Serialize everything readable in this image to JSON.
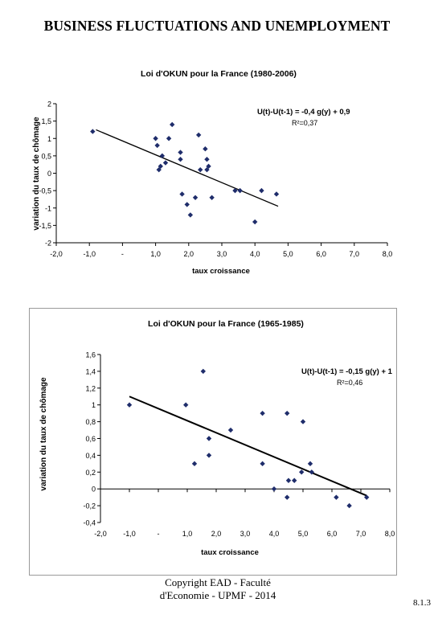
{
  "page": {
    "title": "BUSINESS FLUCTUATIONS AND UNEMPLOYMENT",
    "footer_line1": "Copyright EAD - Faculté",
    "footer_line2": "d'Economie - UPMF - 2014",
    "page_number": "8.1.3"
  },
  "chart_data": [
    {
      "type": "scatter",
      "title": "Loi d'OKUN pour la France (1980-2006)",
      "xlabel": "taux croissance",
      "ylabel": "variation du taux de chômage",
      "xlim": [
        -2,
        8
      ],
      "ylim": [
        -2,
        2
      ],
      "x_ticks": [
        -2,
        -1,
        0,
        1,
        2,
        3,
        4,
        5,
        6,
        7,
        8
      ],
      "x_tick_labels": [
        "-2,0",
        "-1,0",
        "-",
        "1,0",
        "2,0",
        "3,0",
        "4,0",
        "5,0",
        "6,0",
        "7,0",
        "8,0"
      ],
      "y_ticks": [
        2,
        1.5,
        1,
        0.5,
        0,
        -0.5,
        -1,
        -1.5,
        -2
      ],
      "y_tick_labels": [
        "2",
        "1,5",
        "1",
        "0,5",
        "0",
        "-0,5",
        "-1",
        "-1,5",
        "-2"
      ],
      "equation": "U(t)-U(t-1) = -0,4 g(y) + 0,9",
      "r2": "R²=0,37",
      "grid": false,
      "border": false,
      "marker_color": "#1f2d6b",
      "trendline": {
        "x": [
          -0.8,
          4.7
        ],
        "y": [
          1.25,
          -0.95
        ]
      },
      "points": [
        {
          "x": -0.9,
          "y": 1.2
        },
        {
          "x": 1.0,
          "y": 1.0
        },
        {
          "x": 1.05,
          "y": 0.8
        },
        {
          "x": 1.1,
          "y": 0.1
        },
        {
          "x": 1.15,
          "y": 0.2
        },
        {
          "x": 1.2,
          "y": 0.5
        },
        {
          "x": 1.3,
          "y": 0.3
        },
        {
          "x": 1.4,
          "y": 1.0
        },
        {
          "x": 1.5,
          "y": 1.4
        },
        {
          "x": 1.75,
          "y": 0.4
        },
        {
          "x": 1.75,
          "y": 0.6
        },
        {
          "x": 1.8,
          "y": -0.6
        },
        {
          "x": 1.95,
          "y": -0.9
        },
        {
          "x": 2.05,
          "y": -1.2
        },
        {
          "x": 2.2,
          "y": -0.7
        },
        {
          "x": 2.3,
          "y": 1.1
        },
        {
          "x": 2.35,
          "y": 0.1
        },
        {
          "x": 2.5,
          "y": 0.7
        },
        {
          "x": 2.55,
          "y": 0.4
        },
        {
          "x": 2.55,
          "y": 0.1
        },
        {
          "x": 2.6,
          "y": 0.2
        },
        {
          "x": 2.7,
          "y": -0.7
        },
        {
          "x": 3.4,
          "y": -0.5
        },
        {
          "x": 3.55,
          "y": -0.5
        },
        {
          "x": 4.0,
          "y": -1.4
        },
        {
          "x": 4.2,
          "y": -0.5
        },
        {
          "x": 4.65,
          "y": -0.6
        }
      ]
    },
    {
      "type": "scatter",
      "title": "Loi d'OKUN pour la France (1965-1985)",
      "xlabel": "taux croissance",
      "ylabel": "variation du taux de chômage",
      "xlim": [
        -2,
        8
      ],
      "ylim": [
        -0.4,
        1.6
      ],
      "x_ticks": [
        -2,
        -1,
        0,
        1,
        2,
        3,
        4,
        5,
        6,
        7,
        8
      ],
      "x_tick_labels": [
        "-2,0",
        "-1,0",
        "-",
        "1,0",
        "2,0",
        "3,0",
        "4,0",
        "5,0",
        "6,0",
        "7,0",
        "8,0"
      ],
      "y_ticks": [
        1.6,
        1.4,
        1.2,
        1.0,
        0.8,
        0.6,
        0.4,
        0.2,
        0,
        -0.2,
        -0.4
      ],
      "y_tick_labels": [
        "1,6",
        "1,4",
        "1,2",
        "1",
        "0,8",
        "0,6",
        "0,4",
        "0,2",
        "0",
        "-0,2",
        "-0,4"
      ],
      "equation": "U(t)-U(t-1) = -0,15 g(y) + 1",
      "r2": "R²=0,46",
      "grid": false,
      "border": true,
      "marker_color": "#1f2d6b",
      "trendline": {
        "x": [
          -1.0,
          7.2
        ],
        "y": [
          1.1,
          -0.08
        ]
      },
      "points": [
        {
          "x": -1.0,
          "y": 1.0
        },
        {
          "x": 0.95,
          "y": 1.0
        },
        {
          "x": 1.25,
          "y": 0.3
        },
        {
          "x": 1.55,
          "y": 1.4
        },
        {
          "x": 1.75,
          "y": 0.6
        },
        {
          "x": 1.75,
          "y": 0.4
        },
        {
          "x": 2.5,
          "y": 0.7
        },
        {
          "x": 3.6,
          "y": 0.9
        },
        {
          "x": 3.6,
          "y": 0.3
        },
        {
          "x": 4.0,
          "y": 0.0
        },
        {
          "x": 4.45,
          "y": 0.9
        },
        {
          "x": 4.45,
          "y": -0.1
        },
        {
          "x": 4.5,
          "y": 0.1
        },
        {
          "x": 4.7,
          "y": 0.1
        },
        {
          "x": 4.95,
          "y": 0.2
        },
        {
          "x": 5.0,
          "y": 0.8
        },
        {
          "x": 5.25,
          "y": 0.3
        },
        {
          "x": 5.3,
          "y": 0.2
        },
        {
          "x": 6.15,
          "y": -0.1
        },
        {
          "x": 6.6,
          "y": -0.2
        },
        {
          "x": 7.2,
          "y": -0.1
        }
      ]
    }
  ]
}
